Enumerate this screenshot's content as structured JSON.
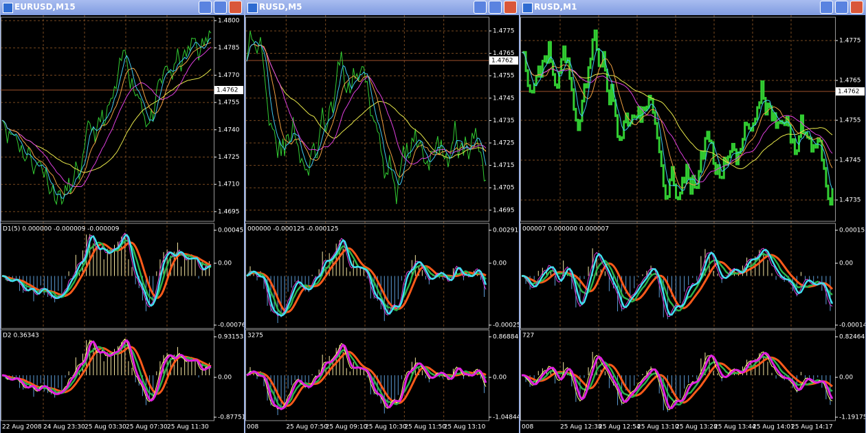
{
  "windows": [
    {
      "title": "EURUSD,M15",
      "price_scale": [
        "1.4800",
        "1.4785",
        "1.4770",
        "1.4755",
        "1.4740",
        "1.4725",
        "1.4710",
        "1.4695"
      ],
      "current_price": "1.4762",
      "pane1": {
        "label": "D1(5) 0.000000 -0.000009 -0.000009",
        "scale": [
          "0.00045",
          "0.00",
          "-0.00076"
        ]
      },
      "pane2": {
        "label": "D2 0.36343",
        "scale": [
          "0.93153",
          "0.00",
          "-0.87751"
        ]
      },
      "time_scale": [
        "22 Aug 2008",
        "24 Aug 23:30",
        "25 Aug 03:30",
        "25 Aug 07:30",
        "25 Aug 11:30"
      ]
    },
    {
      "title": "RUSD,M5",
      "price_scale": [
        "1.4775",
        "1.4765",
        "1.4755",
        "1.4745",
        "1.4735",
        "1.4725",
        "1.4715",
        "1.4705",
        "1.4695"
      ],
      "current_price": "1.4762",
      "pane1": {
        "label": "000000 -0.000125 -0.000125",
        "scale": [
          "0.00291",
          "0.00",
          "-0.00025"
        ]
      },
      "pane2": {
        "label": "3275",
        "scale": [
          "0.86884",
          "0.00",
          "-1.04844"
        ]
      },
      "time_scale": [
        "008",
        "25 Aug 07:50",
        "25 Aug 09:10",
        "25 Aug 10:30",
        "25 Aug 11:50",
        "25 Aug 13:10"
      ]
    },
    {
      "title": "RUSD,M1",
      "price_scale": [
        "1.4775",
        "1.4765",
        "1.4755",
        "1.4745",
        "1.4735"
      ],
      "current_price": "1.4762",
      "pane1": {
        "label": "000007 0.000000 0.000007",
        "scale": [
          "0.00015",
          "0.00",
          "-0.00014"
        ]
      },
      "pane2": {
        "label": "727",
        "scale": [
          "0.82464",
          "0.00",
          "-1.19175"
        ]
      },
      "time_scale": [
        "008",
        "25 Aug 12:38",
        "25 Aug 12:54",
        "25 Aug 13:10",
        "25 Aug 13:28",
        "25 Aug 13:44",
        "25 Aug 14:01",
        "25 Aug 14:17"
      ]
    }
  ]
}
